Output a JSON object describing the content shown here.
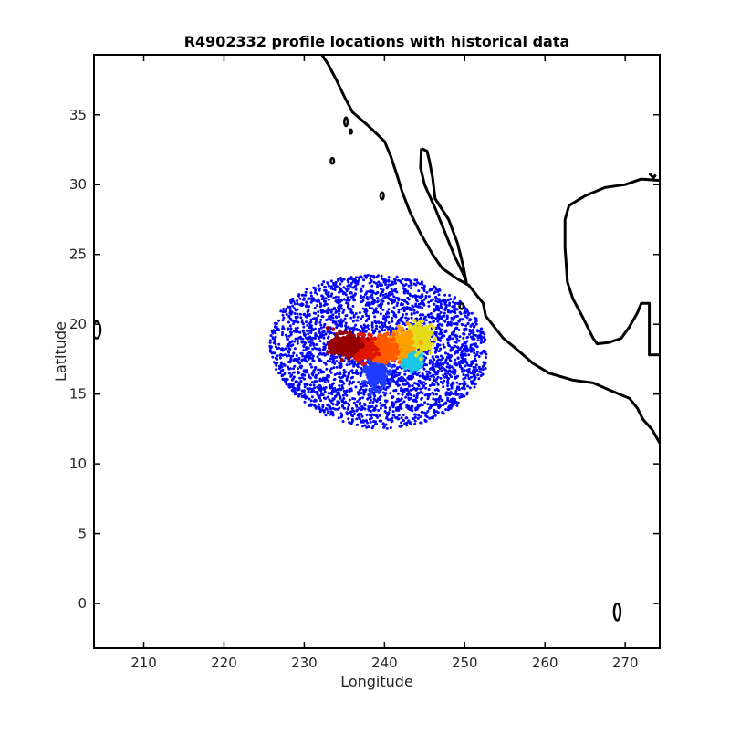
{
  "chart_data": {
    "type": "scatter",
    "title": "R4902332 profile locations with historical data",
    "xlabel": "Longitude",
    "ylabel": "Latitude",
    "xlim": [
      203.8,
      274.3
    ],
    "ylim": [
      -3.2,
      39.3
    ],
    "xticks": [
      210,
      220,
      230,
      240,
      250,
      260,
      270
    ],
    "yticks": [
      0,
      5,
      10,
      15,
      20,
      25,
      30,
      35
    ],
    "grid": false,
    "legend": "none",
    "colors": {
      "historical": "#0000ff",
      "trajectory_colormap": [
        "#1e3cff",
        "#19c8e6",
        "#e6dc19",
        "#ffa000",
        "#ff5a00",
        "#dc1400",
        "#960000"
      ]
    },
    "historical_cloud": {
      "center": [
        239.3,
        18.0
      ],
      "radius_lon": 13.6,
      "radius_lat": 5.5,
      "hole_radius_lon": 3.0,
      "hole_radius_lat": 1.4,
      "approx_points": 3000
    },
    "trajectory_clusters": [
      {
        "lon": 239.0,
        "lat": 16.5,
        "spread_lon": 1.2,
        "spread_lat": 0.9,
        "color_index": 0
      },
      {
        "lon": 243.5,
        "lat": 17.5,
        "spread_lon": 1.0,
        "spread_lat": 0.5,
        "color_index": 1
      },
      {
        "lon": 244.5,
        "lat": 19.0,
        "spread_lon": 1.2,
        "spread_lat": 0.8,
        "color_index": 2
      },
      {
        "lon": 242.0,
        "lat": 18.6,
        "spread_lon": 1.3,
        "spread_lat": 0.8,
        "color_index": 3
      },
      {
        "lon": 240.0,
        "lat": 18.2,
        "spread_lon": 1.4,
        "spread_lat": 0.8,
        "color_index": 4
      },
      {
        "lon": 237.5,
        "lat": 18.3,
        "spread_lon": 1.2,
        "spread_lat": 0.7,
        "color_index": 5
      },
      {
        "lon": 235.0,
        "lat": 18.5,
        "spread_lon": 1.6,
        "spread_lat": 0.7,
        "color_index": 6
      }
    ],
    "coastline": [
      [
        [
          232.2,
          39.3
        ],
        [
          233.0,
          38.6
        ],
        [
          234.0,
          37.5
        ],
        [
          235.0,
          36.3
        ],
        [
          236.0,
          35.2
        ],
        [
          238.0,
          34.2
        ],
        [
          240.0,
          33.1
        ],
        [
          240.8,
          32.0
        ],
        [
          241.5,
          30.8
        ],
        [
          242.2,
          29.5
        ],
        [
          243.2,
          28.0
        ],
        [
          244.5,
          26.5
        ],
        [
          246.0,
          25.0
        ],
        [
          247.2,
          24.0
        ],
        [
          249.2,
          23.2
        ],
        [
          250.5,
          22.8
        ],
        [
          252.3,
          21.5
        ],
        [
          252.6,
          20.6
        ],
        [
          254.8,
          19.0
        ],
        [
          256.5,
          18.2
        ],
        [
          258.5,
          17.2
        ],
        [
          260.5,
          16.5
        ],
        [
          263.5,
          16.0
        ],
        [
          266.0,
          15.8
        ],
        [
          268.0,
          15.3
        ],
        [
          270.5,
          14.7
        ],
        [
          271.5,
          14.0
        ],
        [
          272.2,
          13.2
        ],
        [
          273.3,
          12.5
        ],
        [
          274.3,
          11.5
        ]
      ],
      [
        [
          244.6,
          32.6
        ],
        [
          244.5,
          31.2
        ],
        [
          245.0,
          30.0
        ],
        [
          246.4,
          28.2
        ],
        [
          247.8,
          26.2
        ],
        [
          248.8,
          24.8
        ],
        [
          249.9,
          23.5
        ],
        [
          250.2,
          23.0
        ],
        [
          249.8,
          24.2
        ],
        [
          249.1,
          25.8
        ],
        [
          248.0,
          27.5
        ],
        [
          246.3,
          29.0
        ],
        [
          246.0,
          30.5
        ],
        [
          245.6,
          31.7
        ],
        [
          245.3,
          32.4
        ],
        [
          244.6,
          32.6
        ]
      ],
      [
        [
          274.3,
          30.3
        ],
        [
          272.0,
          30.4
        ],
        [
          270.0,
          30.0
        ],
        [
          267.5,
          29.8
        ],
        [
          265.0,
          29.2
        ],
        [
          263.0,
          28.5
        ],
        [
          262.5,
          27.5
        ],
        [
          262.5,
          25.5
        ],
        [
          262.8,
          23.0
        ],
        [
          263.5,
          21.8
        ],
        [
          264.7,
          20.5
        ],
        [
          266.0,
          19.0
        ],
        [
          266.5,
          18.6
        ],
        [
          268.0,
          18.7
        ],
        [
          269.5,
          19.0
        ],
        [
          270.5,
          19.8
        ],
        [
          271.5,
          20.8
        ],
        [
          272.0,
          21.5
        ],
        [
          273.0,
          21.5
        ],
        [
          273.0,
          19.5
        ],
        [
          273.0,
          17.8
        ],
        [
          274.3,
          17.8
        ]
      ],
      [
        [
          273.0,
          30.8
        ],
        [
          273.5,
          30.5
        ],
        [
          273.8,
          30.7
        ]
      ]
    ],
    "islands": [
      {
        "lon": 204.1,
        "lat": 19.6,
        "rlon": 0.5,
        "rlat": 0.6
      },
      {
        "lon": 233.5,
        "lat": 31.7,
        "rlon": 0.2,
        "rlat": 0.2
      },
      {
        "lon": 235.2,
        "lat": 34.5,
        "rlon": 0.2,
        "rlat": 0.3
      },
      {
        "lon": 235.8,
        "lat": 33.8,
        "rlon": 0.15,
        "rlat": 0.15
      },
      {
        "lon": 239.7,
        "lat": 29.2,
        "rlon": 0.2,
        "rlat": 0.25
      },
      {
        "lon": 249.6,
        "lat": 21.3,
        "rlon": 0.25,
        "rlat": 0.2
      },
      {
        "lon": 269.0,
        "lat": -0.6,
        "rlon": 0.4,
        "rlat": 0.6
      }
    ]
  }
}
